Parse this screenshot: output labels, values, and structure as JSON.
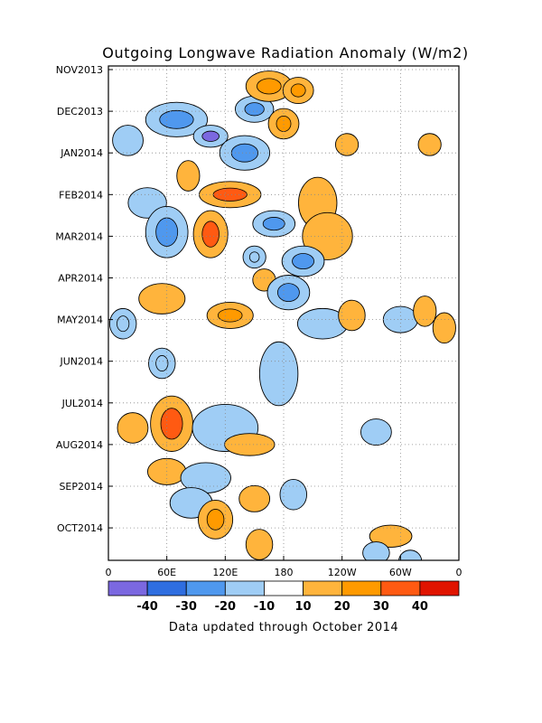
{
  "chart_data": {
    "type": "heatmap",
    "title": "Outgoing Longwave Radiation Anomaly (W/m2)",
    "footer": "Data updated through October 2014",
    "xlabel": "",
    "ylabel": "",
    "x_ticks": [
      {
        "lon": 0,
        "label": "0"
      },
      {
        "lon": 60,
        "label": "60E"
      },
      {
        "lon": 120,
        "label": "120E"
      },
      {
        "lon": 180,
        "label": "180"
      },
      {
        "lon": 240,
        "label": "120W"
      },
      {
        "lon": 300,
        "label": "60W"
      },
      {
        "lon": 360,
        "label": "0"
      }
    ],
    "y_ticks": [
      {
        "month": 0,
        "label": "NOV2013"
      },
      {
        "month": 1,
        "label": "DEC2013"
      },
      {
        "month": 2,
        "label": "JAN2014"
      },
      {
        "month": 3,
        "label": "FEB2014"
      },
      {
        "month": 4,
        "label": "MAR2014"
      },
      {
        "month": 5,
        "label": "APR2014"
      },
      {
        "month": 6,
        "label": "MAY2014"
      },
      {
        "month": 7,
        "label": "JUN2014"
      },
      {
        "month": 8,
        "label": "JUL2014"
      },
      {
        "month": 9,
        "label": "AUG2014"
      },
      {
        "month": 10,
        "label": "SEP2014"
      },
      {
        "month": 11,
        "label": "OCT2014"
      }
    ],
    "xlim": [
      0,
      360
    ],
    "ylim_months": [
      0,
      11.9
    ],
    "grid": true,
    "colorbar": {
      "labels": [
        "-40",
        "-30",
        "-20",
        "-10",
        "10",
        "20",
        "30",
        "40"
      ],
      "bins": [
        {
          "range": "< -40",
          "color": "#7b68e0"
        },
        {
          "range": "-40 to -30",
          "color": "#2f6ee0"
        },
        {
          "range": "-30 to -20",
          "color": "#4f98ee"
        },
        {
          "range": "-20 to -10",
          "color": "#9fcdf5"
        },
        {
          "range": "-10 to 10",
          "color": "#ffffff"
        },
        {
          "range": "10 to 20",
          "color": "#ffb43c"
        },
        {
          "range": "20 to 30",
          "color": "#ff9a00"
        },
        {
          "range": "30 to 40",
          "color": "#ff5a12"
        },
        {
          "range": "> 40",
          "color": "#e01400"
        }
      ]
    },
    "anomaly_features": [
      {
        "lon": 20,
        "month": 1.7,
        "value": -15,
        "rx": 12,
        "ry": 0.3
      },
      {
        "lon": 70,
        "month": 1.2,
        "value": -30,
        "rx": 28,
        "ry": 0.35
      },
      {
        "lon": 105,
        "month": 1.6,
        "value": -45,
        "rx": 14,
        "ry": 0.2
      },
      {
        "lon": 150,
        "month": 0.95,
        "value": -25,
        "rx": 16,
        "ry": 0.25
      },
      {
        "lon": 165,
        "month": 0.4,
        "value": 22,
        "rx": 20,
        "ry": 0.3
      },
      {
        "lon": 195,
        "month": 0.5,
        "value": 28,
        "rx": 12,
        "ry": 0.25
      },
      {
        "lon": 180,
        "month": 1.3,
        "value": 20,
        "rx": 12,
        "ry": 0.3
      },
      {
        "lon": 140,
        "month": 2.0,
        "value": -25,
        "rx": 22,
        "ry": 0.35
      },
      {
        "lon": 245,
        "month": 1.8,
        "value": 15,
        "rx": 8,
        "ry": 0.2
      },
      {
        "lon": 330,
        "month": 1.8,
        "value": 15,
        "rx": 8,
        "ry": 0.2
      },
      {
        "lon": 125,
        "month": 3.0,
        "value": 30,
        "rx": 28,
        "ry": 0.25
      },
      {
        "lon": 82,
        "month": 2.55,
        "value": 15,
        "rx": 8,
        "ry": 0.3
      },
      {
        "lon": 215,
        "month": 3.2,
        "value": 18,
        "rx": 16,
        "ry": 0.55
      },
      {
        "lon": 225,
        "month": 4.0,
        "value": 15,
        "rx": 22,
        "ry": 0.5
      },
      {
        "lon": 40,
        "month": 3.2,
        "value": -15,
        "rx": 16,
        "ry": 0.3
      },
      {
        "lon": 60,
        "month": 3.9,
        "value": -30,
        "rx": 18,
        "ry": 0.55
      },
      {
        "lon": 105,
        "month": 3.95,
        "value": 35,
        "rx": 14,
        "ry": 0.5
      },
      {
        "lon": 170,
        "month": 3.7,
        "value": -30,
        "rx": 18,
        "ry": 0.25
      },
      {
        "lon": 200,
        "month": 4.6,
        "value": -30,
        "rx": 18,
        "ry": 0.3
      },
      {
        "lon": 150,
        "month": 4.5,
        "value": -20,
        "rx": 8,
        "ry": 0.2
      },
      {
        "lon": 160,
        "month": 5.05,
        "value": 12,
        "rx": 8,
        "ry": 0.2
      },
      {
        "lon": 185,
        "month": 5.35,
        "value": -30,
        "rx": 18,
        "ry": 0.35
      },
      {
        "lon": 55,
        "month": 5.5,
        "value": 18,
        "rx": 20,
        "ry": 0.3
      },
      {
        "lon": 125,
        "month": 5.9,
        "value": 22,
        "rx": 20,
        "ry": 0.25
      },
      {
        "lon": 15,
        "month": 6.1,
        "value": -20,
        "rx": 10,
        "ry": 0.3
      },
      {
        "lon": 220,
        "month": 6.1,
        "value": -15,
        "rx": 22,
        "ry": 0.3
      },
      {
        "lon": 250,
        "month": 5.9,
        "value": 15,
        "rx": 10,
        "ry": 0.3
      },
      {
        "lon": 300,
        "month": 6.0,
        "value": -15,
        "rx": 14,
        "ry": 0.25
      },
      {
        "lon": 325,
        "month": 5.8,
        "value": 15,
        "rx": 8,
        "ry": 0.3
      },
      {
        "lon": 345,
        "month": 6.2,
        "value": 15,
        "rx": 8,
        "ry": 0.3
      },
      {
        "lon": 55,
        "month": 7.05,
        "value": -20,
        "rx": 10,
        "ry": 0.3
      },
      {
        "lon": 175,
        "month": 7.3,
        "value": -15,
        "rx": 16,
        "ry": 0.7
      },
      {
        "lon": 65,
        "month": 8.5,
        "value": 30,
        "rx": 18,
        "ry": 0.6
      },
      {
        "lon": 25,
        "month": 8.6,
        "value": 15,
        "rx": 12,
        "ry": 0.3
      },
      {
        "lon": 120,
        "month": 8.6,
        "value": -15,
        "rx": 30,
        "ry": 0.5
      },
      {
        "lon": 145,
        "month": 9.0,
        "value": 15,
        "rx": 22,
        "ry": 0.2
      },
      {
        "lon": 60,
        "month": 9.65,
        "value": 15,
        "rx": 16,
        "ry": 0.25
      },
      {
        "lon": 100,
        "month": 9.8,
        "value": -15,
        "rx": 22,
        "ry": 0.3
      },
      {
        "lon": 275,
        "month": 8.7,
        "value": -15,
        "rx": 12,
        "ry": 0.25
      },
      {
        "lon": 85,
        "month": 10.4,
        "value": -15,
        "rx": 18,
        "ry": 0.3
      },
      {
        "lon": 110,
        "month": 10.8,
        "value": 25,
        "rx": 14,
        "ry": 0.4
      },
      {
        "lon": 150,
        "month": 10.3,
        "value": 15,
        "rx": 12,
        "ry": 0.25
      },
      {
        "lon": 190,
        "month": 10.2,
        "value": -15,
        "rx": 10,
        "ry": 0.3
      },
      {
        "lon": 155,
        "month": 11.4,
        "value": 15,
        "rx": 10,
        "ry": 0.3
      },
      {
        "lon": 290,
        "month": 11.2,
        "value": 15,
        "rx": 18,
        "ry": 0.2
      },
      {
        "lon": 275,
        "month": 11.6,
        "value": -15,
        "rx": 10,
        "ry": 0.2
      },
      {
        "lon": 310,
        "month": 11.8,
        "value": -15,
        "rx": 8,
        "ry": 0.2
      }
    ]
  }
}
